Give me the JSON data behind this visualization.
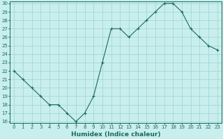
{
  "x": [
    0,
    1,
    2,
    3,
    4,
    5,
    6,
    7,
    8,
    9,
    10,
    11,
    12,
    13,
    14,
    15,
    16,
    17,
    18,
    19,
    20,
    21,
    22,
    23
  ],
  "y": [
    22,
    21,
    20,
    19,
    18,
    18,
    17,
    16,
    17,
    19,
    23,
    27,
    27,
    26,
    27,
    28,
    29,
    30,
    30,
    29,
    27,
    26,
    25,
    24.5
  ],
  "xlabel": "Humidex (Indice chaleur)",
  "ylim": [
    16,
    30
  ],
  "xlim": [
    -0.5,
    23.5
  ],
  "yticks": [
    16,
    17,
    18,
    19,
    20,
    21,
    22,
    23,
    24,
    25,
    26,
    27,
    28,
    29,
    30
  ],
  "xticks": [
    0,
    1,
    2,
    3,
    4,
    5,
    6,
    7,
    8,
    9,
    10,
    11,
    12,
    13,
    14,
    15,
    16,
    17,
    18,
    19,
    20,
    21,
    22,
    23
  ],
  "line_color": "#1a6b5e",
  "marker_color": "#1a6b5e",
  "bg_color": "#c8eeed",
  "grid_color": "#9ed4d0",
  "tick_fontsize": 5.0,
  "xlabel_fontsize": 6.5
}
